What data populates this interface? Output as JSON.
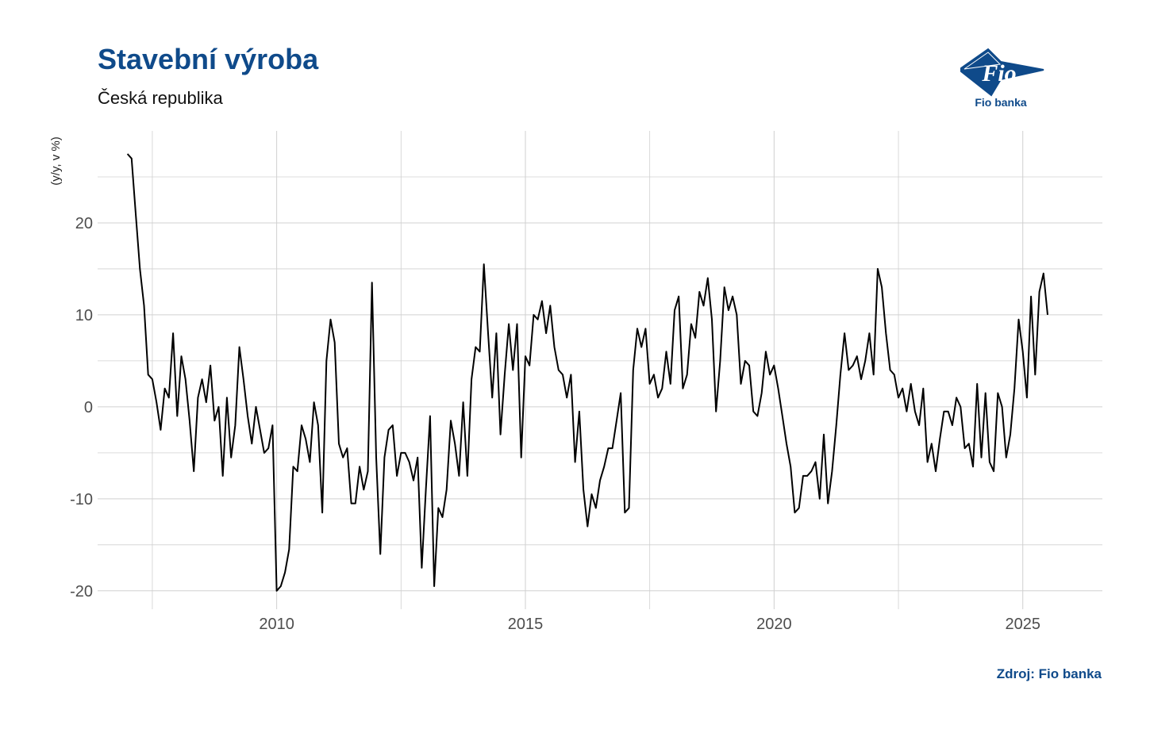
{
  "header": {
    "title": "Stavební výroba",
    "subtitle": "Česká republika"
  },
  "logo": {
    "text": "Fio",
    "caption": "Fio banka",
    "color": "#0f4a8a"
  },
  "footer": {
    "source": "Zdroj: Fio banka"
  },
  "colors": {
    "title": "#0f4a8a",
    "line": "#000000",
    "grid": "#d0d0d0"
  },
  "chart_data": {
    "type": "line",
    "title": "Stavební výroba",
    "subtitle": "Česká republika",
    "xlabel": "",
    "ylabel": "(y/y, v %)",
    "xlim": [
      2006.4,
      2026.6
    ],
    "ylim": [
      -22,
      30
    ],
    "x_ticks": [
      2010,
      2015,
      2020,
      2025
    ],
    "y_ticks": [
      -20,
      -10,
      0,
      10,
      20
    ],
    "grid": true,
    "series": [
      {
        "name": "",
        "x_start": 2007.0,
        "step": 0.08333,
        "values": [
          27.5,
          27,
          21,
          15,
          11,
          3.5,
          3,
          0.5,
          -2.5,
          2,
          1,
          8,
          -1,
          5.5,
          3,
          -1.5,
          -7,
          1,
          3,
          0.5,
          4.5,
          -1.5,
          0,
          -7.5,
          1,
          -5.5,
          -2,
          6.5,
          3,
          -1,
          -4,
          0,
          -2.5,
          -5,
          -4.5,
          -2,
          -20,
          -19.5,
          -18,
          -15.5,
          -6.5,
          -7,
          -2,
          -3.5,
          -6,
          0.5,
          -2,
          -11.5,
          5,
          9.5,
          7,
          -4,
          -5.5,
          -4.5,
          -10.5,
          -10.5,
          -6.5,
          -9,
          -7,
          13.5,
          -5.5,
          -16,
          -5.5,
          -2.5,
          -2,
          -7.5,
          -5,
          -5,
          -6,
          -8,
          -5.5,
          -17.5,
          -9,
          -1,
          -19.5,
          -11,
          -12,
          -9,
          -1.5,
          -4,
          -7.5,
          0.5,
          -7.5,
          3,
          6.5,
          6,
          15.5,
          8,
          1,
          8,
          -3,
          3.5,
          9,
          4,
          9,
          -5.5,
          5.5,
          4.5,
          10,
          9.5,
          11.5,
          8,
          11,
          6.5,
          4,
          3.5,
          1,
          3.5,
          -6,
          -0.5,
          -9,
          -13,
          -9.5,
          -11,
          -8,
          -6.5,
          -4.5,
          -4.5,
          -1.5,
          1.5,
          -11.5,
          -11,
          4,
          8.5,
          6.5,
          8.5,
          2.5,
          3.5,
          1,
          2,
          6,
          2.5,
          10.5,
          12,
          2,
          3.5,
          9,
          7.5,
          12.5,
          11,
          14,
          9.5,
          -0.5,
          5,
          13,
          10.5,
          12,
          10,
          2.5,
          5,
          4.5,
          -0.5,
          -1,
          1.5,
          6,
          3.5,
          4.5,
          2,
          -1,
          -4,
          -6.5,
          -11.5,
          -11,
          -7.5,
          -7.5,
          -7,
          -6,
          -10,
          -3,
          -10.5,
          -7,
          -2,
          3.5,
          8,
          4,
          4.5,
          5.5,
          3,
          5,
          8,
          3.5,
          15,
          13,
          8,
          4,
          3.5,
          1,
          2,
          -0.5,
          2.5,
          -0.5,
          -2,
          2,
          -6,
          -4,
          -7,
          -3.5,
          -0.5,
          -0.5,
          -2,
          1,
          0,
          -4.5,
          -4,
          -6.5,
          2.5,
          -5.5,
          1.5,
          -6,
          -7,
          1.5,
          0,
          -5.5,
          -3,
          2,
          9.5,
          6,
          1,
          12,
          3.5,
          12.5,
          14.5,
          10
        ]
      }
    ]
  }
}
